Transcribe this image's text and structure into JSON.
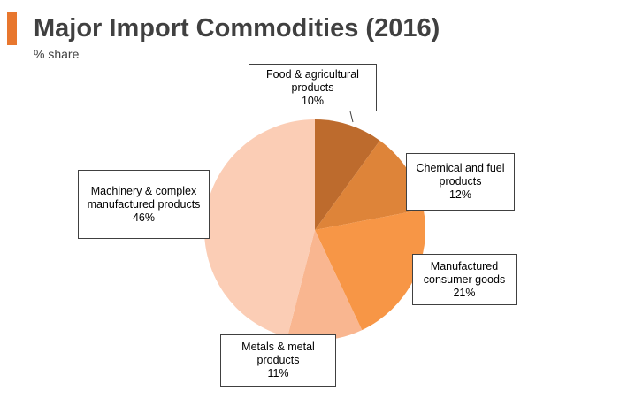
{
  "header": {
    "title": "Major Import Commodities (2016)",
    "subtitle": "% share",
    "accent_color": "#e8772e"
  },
  "chart_data": {
    "type": "pie",
    "title": "Major Import Commodities (2016)",
    "subtitle": "% share",
    "unit": "%",
    "start": "12 o'clock, clockwise",
    "slices": [
      {
        "label_lines": [
          "Food & agricultural",
          "products"
        ],
        "value": 10,
        "value_label": "10%",
        "color": "#bd6b2d"
      },
      {
        "label_lines": [
          "Chemical and fuel",
          "products"
        ],
        "value": 12,
        "value_label": "12%",
        "color": "#de8439"
      },
      {
        "label_lines": [
          "Manufactured",
          "consumer goods"
        ],
        "value": 21,
        "value_label": "21%",
        "color": "#f79646"
      },
      {
        "label_lines": [
          "Metals & metal",
          "products"
        ],
        "value": 11,
        "value_label": "11%",
        "color": "#f9b690"
      },
      {
        "label_lines": [
          "Machinery & complex",
          "manufactured products"
        ],
        "value": 46,
        "value_label": "46%",
        "color": "#fbcdb5"
      }
    ],
    "legend": "none (callout labels)"
  }
}
